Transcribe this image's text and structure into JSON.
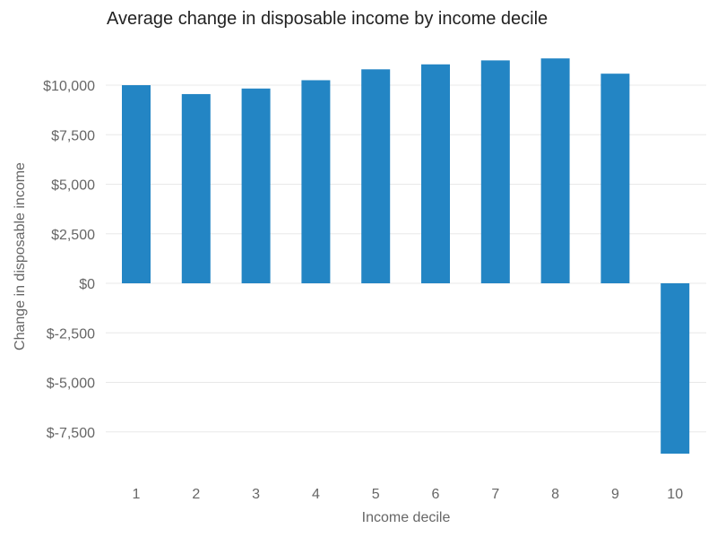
{
  "chart_data": {
    "type": "bar",
    "title": "Average change in disposable income by income decile",
    "xlabel": "Income decile",
    "ylabel": "Change in disposable income",
    "categories": [
      "1",
      "2",
      "3",
      "4",
      "5",
      "6",
      "7",
      "8",
      "9",
      "10"
    ],
    "values": [
      10000,
      9550,
      9830,
      10250,
      10800,
      11050,
      11250,
      11350,
      10580,
      -8600
    ],
    "ylim": [
      -9500,
      11600
    ],
    "yticks": [
      10000,
      7500,
      5000,
      2500,
      0,
      -2500,
      -5000,
      -7500
    ],
    "ytick_labels": [
      "$10,000",
      "$7,500",
      "$5,000",
      "$2,500",
      "$0",
      "$-2,500",
      "$-5,000",
      "$-7,500"
    ],
    "grid": true,
    "legend": "none",
    "bar_color": "#2385c4"
  }
}
